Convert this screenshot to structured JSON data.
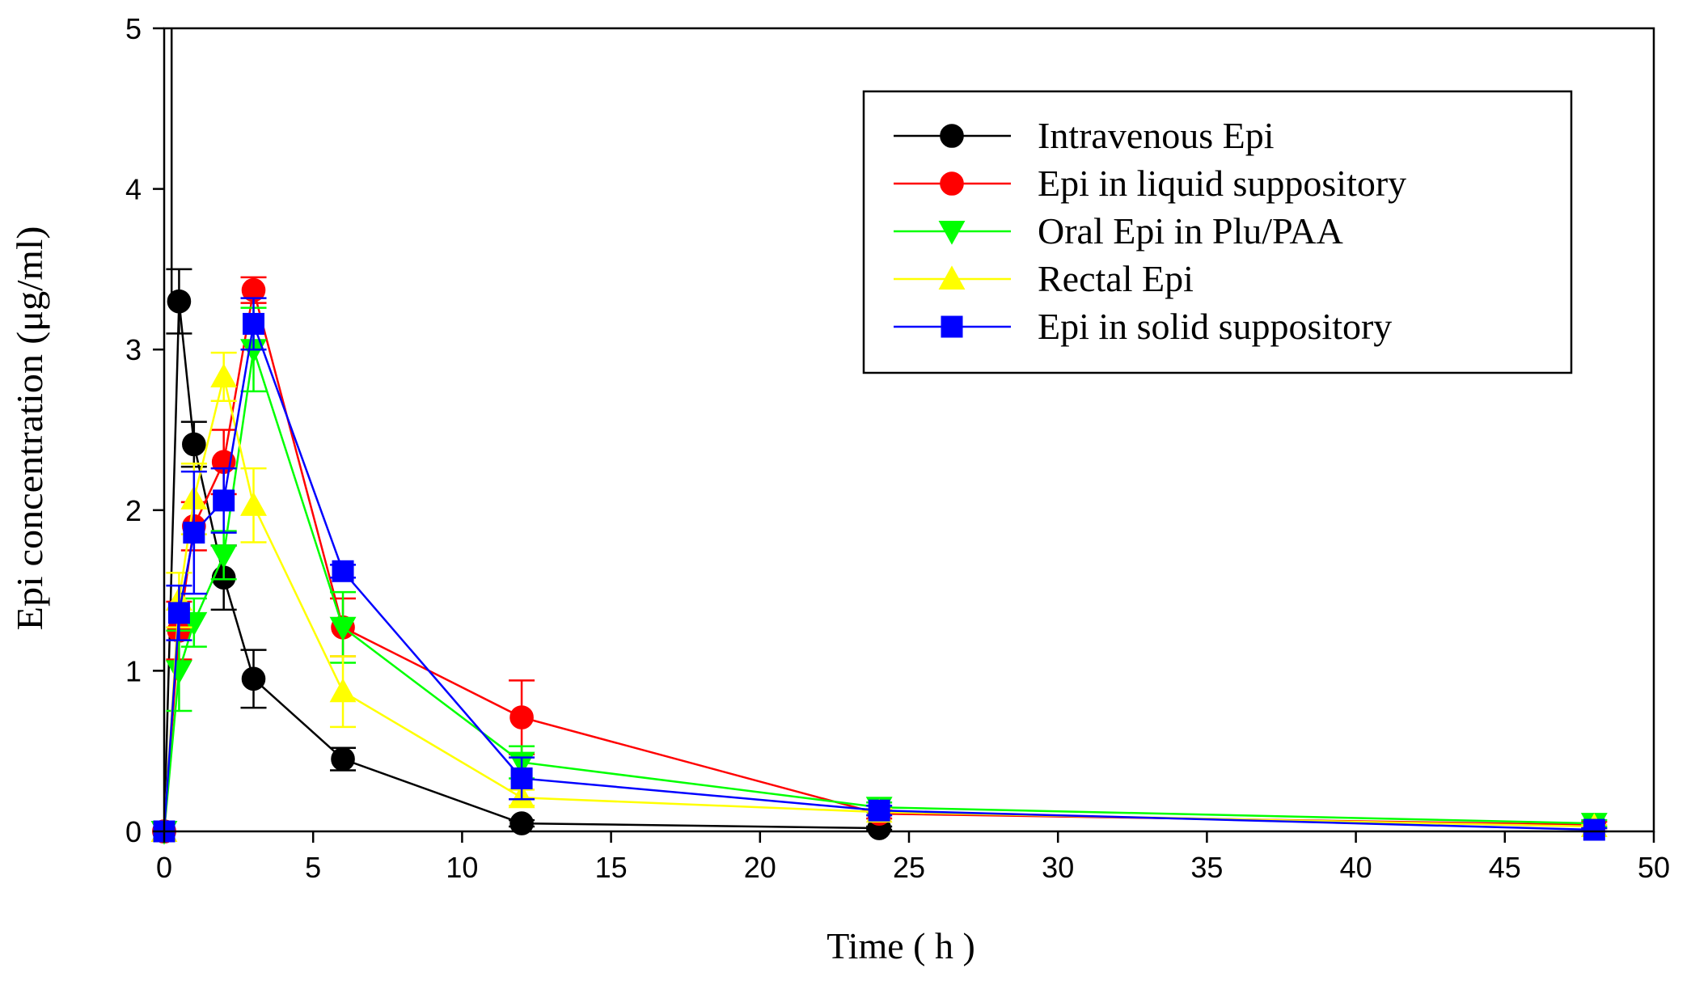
{
  "chart_data": {
    "type": "line",
    "title": "",
    "xlabel": "Time ( h )",
    "ylabel": "Epi concentration (μg/ml)",
    "xlim": [
      0,
      50
    ],
    "ylim": [
      0,
      5
    ],
    "xticks": [
      0,
      5,
      10,
      15,
      20,
      25,
      30,
      35,
      40,
      45,
      50
    ],
    "yticks": [
      0,
      1,
      2,
      3,
      4,
      5
    ],
    "grid": false,
    "legend_position": "top-right",
    "series": [
      {
        "name": "Intravenous Epi",
        "color": "#000000",
        "marker": "circle",
        "x": [
          0,
          0.5,
          1,
          2,
          3,
          6,
          12,
          24
        ],
        "y": [
          0,
          3.3,
          2.41,
          1.58,
          0.95,
          0.45,
          0.05,
          0.02
        ],
        "err": [
          0,
          0.2,
          0.14,
          0.2,
          0.18,
          0.07,
          0.02,
          0.01
        ],
        "top_error": {
          "x": 0.25,
          "y": 5
        }
      },
      {
        "name": "Epi in liquid suppository",
        "color": "#ff0000",
        "marker": "circle",
        "x": [
          0,
          0.5,
          1,
          2,
          3,
          6,
          12,
          24,
          48
        ],
        "y": [
          0,
          1.25,
          1.9,
          2.3,
          3.37,
          1.27,
          0.71,
          0.11,
          0.04
        ],
        "err": [
          0,
          0.18,
          0.15,
          0.2,
          0.08,
          0.18,
          0.23,
          0.03,
          0.02
        ]
      },
      {
        "name": "Oral Epi in Plu/PAA",
        "color": "#00ff00",
        "marker": "triangle-down",
        "x": [
          0,
          0.5,
          1,
          2,
          3,
          6,
          12,
          24,
          48
        ],
        "y": [
          0,
          1.0,
          1.3,
          1.72,
          3.0,
          1.27,
          0.43,
          0.15,
          0.05
        ],
        "err": [
          0,
          0.25,
          0.15,
          0.15,
          0.26,
          0.22,
          0.1,
          0.03,
          0.02
        ]
      },
      {
        "name": "Rectal Epi",
        "color": "#ffff00",
        "marker": "triangle-up",
        "x": [
          0,
          0.5,
          1,
          2,
          3,
          6,
          12,
          24,
          48
        ],
        "y": [
          0,
          1.44,
          2.07,
          2.83,
          2.03,
          0.87,
          0.21,
          0.12,
          0.03
        ],
        "err": [
          0,
          0.17,
          0.22,
          0.15,
          0.23,
          0.22,
          0.05,
          0.02,
          0.01
        ]
      },
      {
        "name": "Epi in solid suppository",
        "color": "#0000ff",
        "marker": "square",
        "x": [
          0,
          0.5,
          1,
          2,
          3,
          6,
          12,
          24,
          48
        ],
        "y": [
          0,
          1.36,
          1.86,
          2.06,
          3.16,
          1.62,
          0.33,
          0.13,
          0.01
        ],
        "err": [
          0,
          0.17,
          0.38,
          0.2,
          0.16,
          0.04,
          0.13,
          0.03,
          0.01
        ]
      }
    ]
  }
}
